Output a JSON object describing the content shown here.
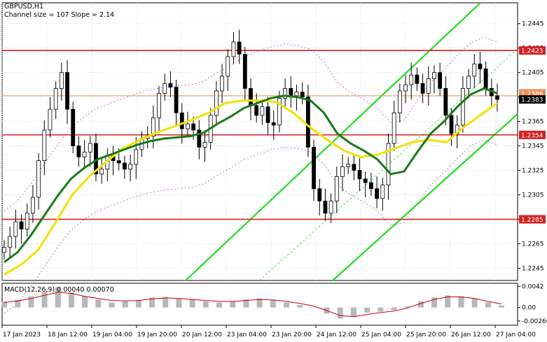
{
  "header": {
    "symbol": "GBPUSD,H1",
    "channel_info": "Channel size = 107 Slope = 2.14"
  },
  "macd": {
    "label": "MACD(12,26,9) 0.00040 0.00070",
    "ticks": [
      "0.0042",
      "0.00",
      "-0.00266"
    ],
    "tick_values": [
      0.0042,
      0.0,
      -0.00266
    ],
    "range": [
      -0.0035,
      0.0048
    ]
  },
  "colors": {
    "candle": "#000000",
    "ma_fast": "#1a7a1a",
    "ma_slow": "#f2e200",
    "channel": "#22dd22",
    "level_line": "#d42020",
    "orange_line": "#e8905a",
    "bollinger": "#b050c8",
    "macd_hist": "#b8b8b8",
    "macd_signal": "#cc0000",
    "grid": "#c8d4e8"
  },
  "chart_data": {
    "type": "line",
    "title": "GBPUSD,H1",
    "ylim": [
      1.2235,
      1.2462
    ],
    "y_ticks": [
      1.2445,
      1.2425,
      1.2405,
      1.2385,
      1.2365,
      1.2345,
      1.2325,
      1.2305,
      1.2285,
      1.2265,
      1.2245
    ],
    "x_ticks": [
      "17 Jan 2023",
      "18 Jan 12:00",
      "19 Jan 04:00",
      "19 Jan 20:00",
      "20 Jan 12:00",
      "23 Jan 04:00",
      "23 Jan 20:00",
      "24 Jan 12:00",
      "25 Jan 04:00",
      "25 Jan 20:00",
      "26 Jan 12:00",
      "27 Jan 04:00"
    ],
    "levels": [
      {
        "label": "1.2423",
        "value": 1.2423
      },
      {
        "label": "1.2354",
        "value": 1.2354
      },
      {
        "label": "1.2285",
        "value": 1.2285
      }
    ],
    "orange_level": {
      "label": "1.2386",
      "value": 1.2386
    },
    "current_price": {
      "label": "1.2383",
      "value": 1.2383
    },
    "closes": [
      1.2262,
      1.2271,
      1.2283,
      1.2277,
      1.229,
      1.2303,
      1.2333,
      1.2358,
      1.2375,
      1.2392,
      1.2405,
      1.2375,
      1.2345,
      1.2336,
      1.234,
      1.2347,
      1.2322,
      1.2326,
      1.2337,
      1.2333,
      1.2331,
      1.2326,
      1.233,
      1.2342,
      1.2351,
      1.2353,
      1.2368,
      1.2388,
      1.2396,
      1.2393,
      1.2372,
      1.2359,
      1.2363,
      1.2358,
      1.2344,
      1.2348,
      1.237,
      1.239,
      1.2402,
      1.2418,
      1.243,
      1.242,
      1.2392,
      1.2378,
      1.237,
      1.2377,
      1.2364,
      1.2362,
      1.2384,
      1.2392,
      1.2386,
      1.2389,
      1.2385,
      1.2344,
      1.231,
      1.23,
      1.229,
      1.23,
      1.232,
      1.2328,
      1.233,
      1.2325,
      1.2318,
      1.2315,
      1.231,
      1.2302,
      1.2313,
      1.2347,
      1.2372,
      1.239,
      1.2395,
      1.2403,
      1.2396,
      1.2388,
      1.24,
      1.2405,
      1.2392,
      1.237,
      1.2355,
      1.2362,
      1.2392,
      1.2402,
      1.2412,
      1.2408,
      1.2392,
      1.2386,
      1.2383
    ],
    "ma_fast": [
      1.225,
      1.2258,
      1.2272,
      1.2288,
      1.2304,
      1.2318,
      1.2327,
      1.2334,
      1.2338,
      1.2342,
      1.2346,
      1.2349,
      1.2351,
      1.2352,
      1.2353,
      1.2356,
      1.2363,
      1.2369,
      1.2376,
      1.238,
      1.2384,
      1.2386,
      1.2385,
      1.2382,
      1.2372,
      1.2355,
      1.2347,
      1.2341,
      1.2334,
      1.2322,
      1.2324,
      1.234,
      1.2355,
      1.2365,
      1.2377,
      1.2387,
      1.2392,
      1.2388
    ],
    "ma_slow": [
      1.224,
      1.2248,
      1.226,
      1.2282,
      1.2305,
      1.232,
      1.2332,
      1.2343,
      1.235,
      1.2356,
      1.2361,
      1.2366,
      1.2372,
      1.238,
      1.2382,
      1.2382,
      1.2381,
      1.2372,
      1.236,
      1.235,
      1.2341,
      1.2336,
      1.2338,
      1.2343,
      1.2348,
      1.235,
      1.2348,
      1.236,
      1.237,
      1.238
    ],
    "macd_hist": [
      0.0012,
      0.0015,
      0.0022,
      0.0031,
      0.004,
      0.003,
      0.0022,
      0.0016,
      0.001,
      0.0012,
      0.0015,
      0.002,
      0.0021,
      0.0018,
      0.0016,
      0.0012,
      0.001,
      0.0012,
      0.0016,
      0.0018,
      0.0015,
      0.001,
      0.0005,
      0.0,
      -0.0012,
      -0.0022,
      -0.0018,
      -0.001,
      -0.0008,
      -0.0005,
      0.0002,
      0.0012,
      0.002,
      0.0024,
      0.0022,
      0.0018,
      0.001,
      0.0004
    ],
    "macd_signal": [
      0.001,
      0.0013,
      0.0018,
      0.0024,
      0.003,
      0.0028,
      0.0022,
      0.0018,
      0.0014,
      0.0013,
      0.0014,
      0.0017,
      0.0019,
      0.0018,
      0.0016,
      0.0014,
      0.0012,
      0.0012,
      0.0014,
      0.0016,
      0.0015,
      0.0012,
      0.0008,
      0.0003,
      -0.0006,
      -0.0016,
      -0.0018,
      -0.0014,
      -0.001,
      -0.0007,
      -0.0001,
      0.0008,
      0.0016,
      0.0021,
      0.0021,
      0.0018,
      0.0012,
      0.0007
    ]
  }
}
